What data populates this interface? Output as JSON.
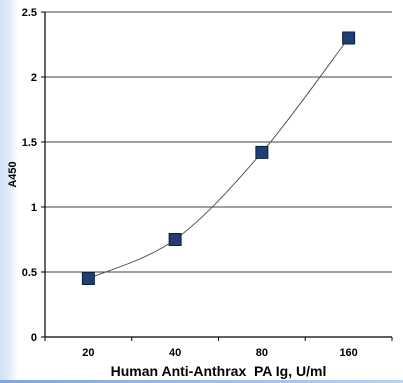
{
  "chart_data": {
    "type": "line",
    "xlabel": "Human Anti-Anthrax  PA Ig, U/ml",
    "ylabel": "A450",
    "categories": [
      "20",
      "40",
      "80",
      "160"
    ],
    "values": [
      0.45,
      0.75,
      1.42,
      2.3
    ],
    "ylim": [
      0,
      2.5
    ],
    "yticks": [
      "0",
      "0.5",
      "1",
      "1.5",
      "2",
      "2.5"
    ],
    "grid": true,
    "marker": "square",
    "marker_color": "#1f3f73",
    "line_color": "#555555"
  }
}
